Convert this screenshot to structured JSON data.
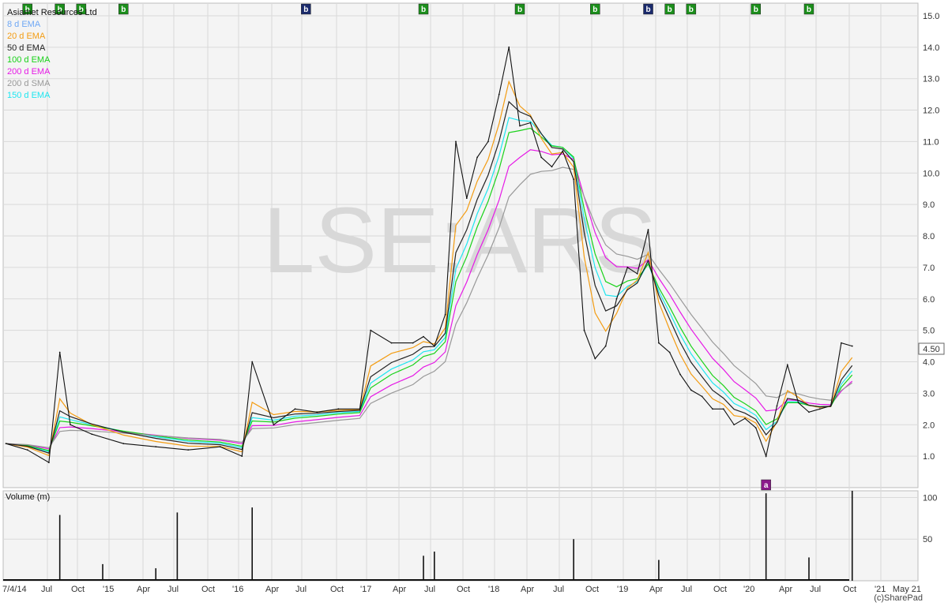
{
  "window": {
    "title": "Asiamet Resources Ltd"
  },
  "watermark": "LSE:ARS",
  "legend": [
    {
      "label": "8 d EMA",
      "color": "#6fa8f5"
    },
    {
      "label": "20 d EMA",
      "color": "#f39c12"
    },
    {
      "label": "50 d EMA",
      "color": "#222222"
    },
    {
      "label": "100 d EMA",
      "color": "#19d219"
    },
    {
      "label": "200 d EMA",
      "color": "#e619e6"
    },
    {
      "label": "200 d SMA",
      "color": "#999999"
    },
    {
      "label": "150 d EMA",
      "color": "#1ee6f0"
    }
  ],
  "last_price_label": "4.50",
  "volume_title": "Volume (m)",
  "copyright": "(c)SharePad",
  "colors": {
    "price_line": "#111111",
    "buy_marker": "#1b8f1b",
    "director_marker": "#1a2a6c",
    "a_marker": "#8b1a8b",
    "grid": "#d9d9d9",
    "panel_bg": "#f4f4f4"
  },
  "chart_data": {
    "type": "line",
    "title": "Asiamet Resources Ltd",
    "price_axis": {
      "ticks": [
        "15.0",
        "14.0",
        "13.0",
        "12.0",
        "11.0",
        "10.0",
        "9.0",
        "8.0",
        "7.0",
        "6.0",
        "5.0",
        "4.0",
        "3.0",
        "2.0",
        "1.0"
      ],
      "ylim": [
        0.0,
        15.4
      ]
    },
    "volume_axis": {
      "ticks": [
        "100",
        "50"
      ],
      "ylim": [
        0,
        108
      ]
    },
    "x_ticks": [
      "7/4/14",
      "Jul",
      "Oct",
      "'15",
      "Apr",
      "Jul",
      "Oct",
      "'16",
      "Apr",
      "Jul",
      "Oct",
      "'17",
      "Apr",
      "Jul",
      "Oct",
      "'18",
      "Apr",
      "Jul",
      "Oct",
      "'19",
      "Apr",
      "Jul",
      "Oct",
      "'20",
      "Apr",
      "Jul",
      "Oct",
      "'21",
      "May 21"
    ],
    "x_range": [
      "2014-04-07",
      "2021-05-21"
    ],
    "price": {
      "x": [
        "2014-04",
        "2014-06",
        "2014-08",
        "2014-09",
        "2014-10",
        "2014-12",
        "2015-03",
        "2015-06",
        "2015-09",
        "2015-12",
        "2016-02",
        "2016-03",
        "2016-05",
        "2016-07",
        "2016-09",
        "2016-11",
        "2017-01",
        "2017-02",
        "2017-04",
        "2017-06",
        "2017-07",
        "2017-08",
        "2017-09",
        "2017-10",
        "2017-11",
        "2017-12",
        "2018-01",
        "2018-02",
        "2018-03",
        "2018-04",
        "2018-05",
        "2018-06",
        "2018-07",
        "2018-08",
        "2018-09",
        "2018-10",
        "2018-11",
        "2018-12",
        "2019-01",
        "2019-02",
        "2019-03",
        "2019-04",
        "2019-05",
        "2019-06",
        "2019-07",
        "2019-08",
        "2019-09",
        "2019-10",
        "2019-11",
        "2019-12",
        "2020-01",
        "2020-02",
        "2020-03",
        "2020-04",
        "2020-05",
        "2020-06",
        "2020-07",
        "2020-08",
        "2020-09",
        "2020-10",
        "2020-11"
      ],
      "values": [
        1.4,
        1.2,
        0.8,
        4.3,
        2.0,
        1.7,
        1.4,
        1.3,
        1.2,
        1.3,
        1.0,
        4.0,
        2.0,
        2.5,
        2.4,
        2.5,
        2.5,
        5.0,
        4.6,
        4.6,
        4.8,
        4.5,
        5.5,
        11.0,
        9.2,
        10.5,
        11.0,
        12.5,
        14.0,
        11.5,
        11.6,
        10.5,
        10.2,
        10.7,
        9.8,
        5.0,
        4.1,
        4.5,
        6.0,
        7.0,
        6.8,
        8.2,
        4.6,
        4.3,
        3.6,
        3.1,
        2.9,
        2.5,
        2.5,
        2.0,
        2.2,
        1.9,
        1.0,
        2.6,
        3.9,
        2.7,
        2.4,
        2.5,
        2.6,
        4.6,
        4.5
      ]
    },
    "volume": {
      "x": [
        "2014-09",
        "2015-01",
        "2015-06",
        "2015-08",
        "2016-03",
        "2017-07",
        "2017-08",
        "2018-09",
        "2019-05",
        "2020-03",
        "2020-07",
        "2020-11"
      ],
      "values": [
        79,
        20,
        15,
        82,
        88,
        30,
        35,
        50,
        25,
        105,
        28,
        108
      ]
    },
    "markers": [
      {
        "x": "2014-06",
        "label": "b",
        "kind": "buy"
      },
      {
        "x": "2014-09",
        "label": "b",
        "kind": "buy"
      },
      {
        "x": "2014-11",
        "label": "b",
        "kind": "buy"
      },
      {
        "x": "2015-03",
        "label": "b",
        "kind": "buy"
      },
      {
        "x": "2016-08",
        "label": "b",
        "kind": "director"
      },
      {
        "x": "2017-07",
        "label": "b",
        "kind": "buy"
      },
      {
        "x": "2018-04",
        "label": "b",
        "kind": "buy"
      },
      {
        "x": "2018-11",
        "label": "b",
        "kind": "buy"
      },
      {
        "x": "2019-04",
        "label": "b",
        "kind": "director"
      },
      {
        "x": "2019-06",
        "label": "b",
        "kind": "buy"
      },
      {
        "x": "2019-08",
        "label": "b",
        "kind": "buy"
      },
      {
        "x": "2020-02",
        "label": "b",
        "kind": "buy"
      },
      {
        "x": "2020-07",
        "label": "b",
        "kind": "buy"
      },
      {
        "x": "2020-03",
        "label": "a",
        "kind": "a"
      }
    ]
  }
}
